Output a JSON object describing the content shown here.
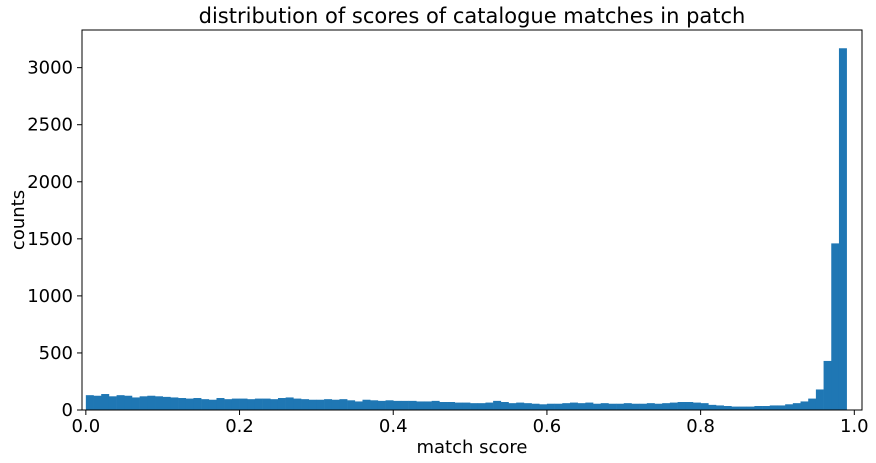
{
  "chart_data": {
    "type": "bar",
    "title": "distribution of scores of catalogue matches in patch",
    "xlabel": "match score",
    "ylabel": "counts",
    "xlim": [
      -0.005,
      1.01
    ],
    "ylim": [
      0,
      3330
    ],
    "xticks": [
      0.0,
      0.2,
      0.4,
      0.6,
      0.8,
      1.0
    ],
    "xtick_labels": [
      "0.0",
      "0.2",
      "0.4",
      "0.6",
      "0.8",
      "1.0"
    ],
    "yticks": [
      0,
      500,
      1000,
      1500,
      2000,
      2500,
      3000
    ],
    "ytick_labels": [
      "0",
      "500",
      "1000",
      "1500",
      "2000",
      "2500",
      "3000"
    ],
    "bin_width": 0.01,
    "bin_start": 0.0,
    "color": "#1f77b4",
    "grid": false,
    "values": [
      130,
      125,
      140,
      120,
      130,
      125,
      110,
      120,
      125,
      120,
      115,
      110,
      105,
      100,
      105,
      95,
      90,
      105,
      95,
      100,
      100,
      95,
      100,
      100,
      95,
      105,
      110,
      100,
      95,
      90,
      90,
      95,
      90,
      95,
      85,
      75,
      90,
      85,
      80,
      85,
      80,
      80,
      80,
      75,
      75,
      80,
      70,
      70,
      65,
      65,
      60,
      60,
      65,
      80,
      70,
      60,
      65,
      60,
      55,
      50,
      55,
      55,
      60,
      65,
      60,
      65,
      55,
      60,
      55,
      55,
      60,
      55,
      55,
      60,
      55,
      60,
      65,
      70,
      70,
      65,
      60,
      45,
      40,
      35,
      30,
      30,
      30,
      35,
      35,
      40,
      40,
      50,
      60,
      75,
      100,
      180,
      430,
      1460,
      3170,
      0
    ]
  }
}
